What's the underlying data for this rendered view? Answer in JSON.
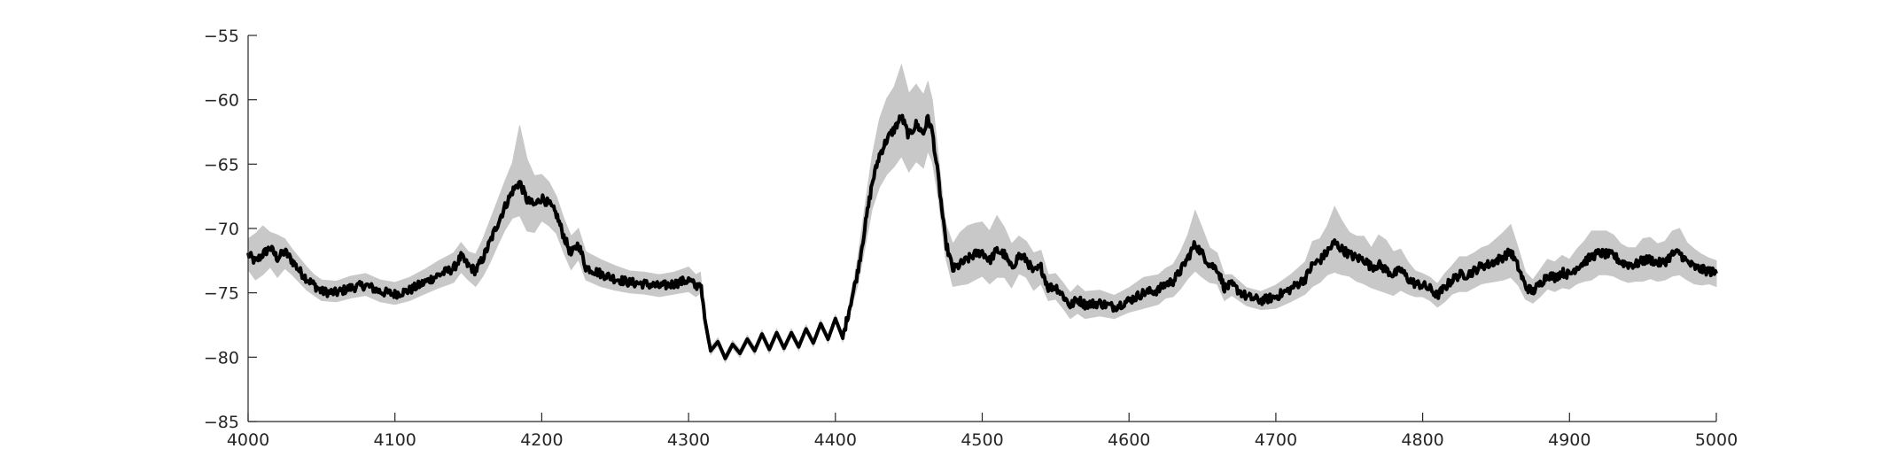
{
  "chart_data": {
    "type": "line",
    "title": "",
    "xlabel": "",
    "ylabel": "",
    "xlim": [
      4000,
      5000
    ],
    "ylim": [
      -85,
      -55
    ],
    "xticks": [
      4000,
      4100,
      4200,
      4300,
      4400,
      4500,
      4600,
      4700,
      4800,
      4900,
      5000
    ],
    "yticks": [
      -55,
      -60,
      -65,
      -70,
      -75,
      -80,
      -85
    ],
    "xtick_labels": [
      "4000",
      "4100",
      "4200",
      "4300",
      "4400",
      "4500",
      "4600",
      "4700",
      "4800",
      "4900",
      "5000"
    ],
    "ytick_labels": [
      "−55",
      "−60",
      "−65",
      "−70",
      "−75",
      "−80",
      "−85"
    ],
    "grid": false,
    "legend": "none",
    "colors": {
      "mean_line": "#000000",
      "band": "#c8c8c8",
      "axis": "#262626"
    },
    "series": [
      {
        "role": "mean",
        "x": [
          4000,
          4005,
          4010,
          4015,
          4020,
          4025,
          4030,
          4035,
          4040,
          4045,
          4050,
          4060,
          4070,
          4080,
          4090,
          4100,
          4110,
          4120,
          4130,
          4140,
          4145,
          4150,
          4155,
          4160,
          4165,
          4170,
          4175,
          4180,
          4185,
          4190,
          4195,
          4200,
          4205,
          4210,
          4215,
          4220,
          4225,
          4230,
          4240,
          4250,
          4260,
          4270,
          4280,
          4290,
          4300,
          4305,
          4308,
          4311,
          4315,
          4320,
          4325,
          4330,
          4335,
          4340,
          4345,
          4350,
          4355,
          4360,
          4365,
          4370,
          4375,
          4380,
          4385,
          4390,
          4395,
          4400,
          4405,
          4410,
          4415,
          4420,
          4425,
          4430,
          4435,
          4440,
          4445,
          4450,
          4455,
          4460,
          4463,
          4466,
          4470,
          4475,
          4480,
          4485,
          4490,
          4495,
          4500,
          4505,
          4510,
          4515,
          4520,
          4525,
          4530,
          4535,
          4540,
          4545,
          4550,
          4555,
          4560,
          4565,
          4570,
          4580,
          4590,
          4600,
          4610,
          4620,
          4625,
          4630,
          4635,
          4640,
          4645,
          4650,
          4655,
          4660,
          4665,
          4670,
          4680,
          4690,
          4700,
          4710,
          4720,
          4725,
          4730,
          4735,
          4740,
          4745,
          4750,
          4755,
          4760,
          4765,
          4770,
          4775,
          4780,
          4785,
          4790,
          4795,
          4800,
          4805,
          4810,
          4815,
          4820,
          4825,
          4830,
          4835,
          4840,
          4845,
          4850,
          4855,
          4860,
          4865,
          4870,
          4875,
          4880,
          4885,
          4890,
          4895,
          4900,
          4905,
          4910,
          4915,
          4920,
          4925,
          4930,
          4935,
          4940,
          4945,
          4950,
          4955,
          4960,
          4965,
          4970,
          4975,
          4980,
          4985,
          4990,
          4995,
          5000
        ],
        "y": [
          -72.0,
          -72.6,
          -72.0,
          -71.5,
          -72.3,
          -71.8,
          -72.5,
          -73.3,
          -73.9,
          -74.4,
          -74.9,
          -75.0,
          -74.6,
          -74.4,
          -74.9,
          -75.1,
          -74.8,
          -74.2,
          -73.6,
          -73.1,
          -72.2,
          -72.9,
          -73.3,
          -72.3,
          -71.0,
          -69.6,
          -68.3,
          -67.1,
          -66.4,
          -67.8,
          -68.2,
          -67.6,
          -68.1,
          -68.9,
          -70.6,
          -72.0,
          -71.2,
          -73.0,
          -73.5,
          -73.9,
          -74.2,
          -74.3,
          -74.5,
          -74.3,
          -74.0,
          -74.5,
          -74.2,
          -77.0,
          -79.5,
          -78.8,
          -80.1,
          -79.0,
          -79.7,
          -78.6,
          -79.5,
          -78.2,
          -79.4,
          -78.1,
          -79.3,
          -78.1,
          -79.2,
          -77.8,
          -78.9,
          -77.4,
          -78.6,
          -77.0,
          -78.5,
          -76.0,
          -73.5,
          -70.0,
          -66.5,
          -64.3,
          -63.1,
          -62.3,
          -61.3,
          -62.8,
          -61.9,
          -62.6,
          -61.4,
          -62.5,
          -66.0,
          -71.0,
          -73.2,
          -72.8,
          -72.4,
          -72.0,
          -71.8,
          -72.5,
          -71.7,
          -72.0,
          -73.1,
          -72.1,
          -72.4,
          -73.4,
          -73.0,
          -74.6,
          -74.5,
          -75.2,
          -76.0,
          -75.5,
          -75.9,
          -75.8,
          -76.1,
          -75.6,
          -75.0,
          -74.8,
          -74.3,
          -74.1,
          -73.3,
          -72.3,
          -71.2,
          -72.0,
          -72.8,
          -73.1,
          -74.6,
          -74.4,
          -75.3,
          -75.6,
          -75.3,
          -74.7,
          -73.9,
          -72.8,
          -72.5,
          -71.8,
          -71.1,
          -71.6,
          -72.0,
          -72.3,
          -72.4,
          -73.0,
          -72.8,
          -73.2,
          -73.6,
          -73.2,
          -73.9,
          -74.3,
          -74.4,
          -74.7,
          -75.2,
          -74.6,
          -74.0,
          -73.6,
          -73.6,
          -73.3,
          -72.9,
          -72.8,
          -72.5,
          -72.2,
          -71.8,
          -73.0,
          -74.5,
          -74.9,
          -74.3,
          -73.6,
          -73.8,
          -73.4,
          -73.6,
          -73.0,
          -72.6,
          -72.2,
          -71.9,
          -72.0,
          -72.1,
          -72.6,
          -72.8,
          -72.8,
          -72.5,
          -72.4,
          -72.7,
          -72.6,
          -72.0,
          -71.9,
          -72.6,
          -73.0,
          -73.2,
          -73.3,
          -73.5
        ]
      },
      {
        "role": "band-upper",
        "x": [
          4000,
          4005,
          4010,
          4015,
          4020,
          4025,
          4030,
          4035,
          4040,
          4045,
          4050,
          4060,
          4070,
          4080,
          4090,
          4100,
          4110,
          4120,
          4130,
          4140,
          4145,
          4150,
          4155,
          4160,
          4165,
          4170,
          4175,
          4180,
          4185,
          4190,
          4195,
          4200,
          4205,
          4210,
          4215,
          4220,
          4225,
          4230,
          4240,
          4250,
          4260,
          4270,
          4280,
          4290,
          4300,
          4305,
          4308,
          4311,
          4315,
          4320,
          4325,
          4330,
          4335,
          4340,
          4345,
          4350,
          4355,
          4360,
          4365,
          4370,
          4375,
          4380,
          4385,
          4390,
          4395,
          4400,
          4405,
          4410,
          4415,
          4420,
          4425,
          4430,
          4435,
          4440,
          4445,
          4450,
          4455,
          4460,
          4463,
          4466,
          4470,
          4475,
          4480,
          4485,
          4490,
          4495,
          4500,
          4505,
          4510,
          4515,
          4520,
          4525,
          4530,
          4535,
          4540,
          4545,
          4550,
          4555,
          4560,
          4565,
          4570,
          4580,
          4590,
          4600,
          4610,
          4620,
          4625,
          4630,
          4635,
          4640,
          4645,
          4650,
          4655,
          4660,
          4665,
          4670,
          4680,
          4690,
          4700,
          4710,
          4720,
          4725,
          4730,
          4735,
          4740,
          4745,
          4750,
          4755,
          4760,
          4765,
          4770,
          4775,
          4780,
          4785,
          4790,
          4795,
          4800,
          4805,
          4810,
          4815,
          4820,
          4825,
          4830,
          4835,
          4840,
          4845,
          4850,
          4855,
          4860,
          4865,
          4870,
          4875,
          4880,
          4885,
          4890,
          4895,
          4900,
          4905,
          4910,
          4915,
          4920,
          4925,
          4930,
          4935,
          4940,
          4945,
          4950,
          4955,
          4960,
          4965,
          4970,
          4975,
          4980,
          4985,
          4990,
          4995,
          5000
        ],
        "y": [
          -70.8,
          -70.4,
          -69.8,
          -70.3,
          -70.5,
          -70.8,
          -71.6,
          -72.3,
          -73.0,
          -73.6,
          -74.0,
          -74.1,
          -73.7,
          -73.5,
          -74.0,
          -74.2,
          -73.8,
          -73.2,
          -72.5,
          -71.9,
          -71.1,
          -71.8,
          -72.0,
          -70.8,
          -69.3,
          -67.8,
          -66.3,
          -64.9,
          -62.0,
          -64.6,
          -65.9,
          -65.8,
          -66.4,
          -67.5,
          -69.2,
          -70.6,
          -70.0,
          -71.8,
          -72.4,
          -72.9,
          -73.3,
          -73.4,
          -73.6,
          -73.4,
          -73.0,
          -73.6,
          -73.4,
          -76.6,
          -79.2,
          -78.5,
          -79.8,
          -78.7,
          -79.4,
          -78.3,
          -79.2,
          -77.9,
          -79.1,
          -77.8,
          -79.0,
          -77.8,
          -78.9,
          -77.5,
          -78.6,
          -77.1,
          -78.3,
          -76.7,
          -78.2,
          -75.5,
          -72.5,
          -68.4,
          -64.4,
          -61.5,
          -59.9,
          -59.0,
          -57.3,
          -59.5,
          -58.8,
          -59.6,
          -58.6,
          -60.0,
          -64.2,
          -69.6,
          -71.2,
          -70.3,
          -69.8,
          -69.6,
          -69.5,
          -70.2,
          -69.0,
          -69.9,
          -71.2,
          -70.6,
          -71.0,
          -71.9,
          -71.7,
          -73.6,
          -73.5,
          -74.2,
          -75.0,
          -74.4,
          -74.9,
          -74.8,
          -75.2,
          -74.6,
          -73.8,
          -73.6,
          -73.1,
          -72.8,
          -71.8,
          -70.5,
          -68.6,
          -70.0,
          -71.5,
          -71.9,
          -73.6,
          -73.6,
          -74.6,
          -74.9,
          -74.4,
          -73.6,
          -72.6,
          -71.0,
          -70.8,
          -69.8,
          -68.3,
          -69.4,
          -70.3,
          -70.6,
          -70.6,
          -71.5,
          -70.5,
          -70.9,
          -71.8,
          -71.6,
          -72.6,
          -73.3,
          -73.5,
          -73.8,
          -74.3,
          -73.5,
          -72.9,
          -72.2,
          -72.2,
          -71.9,
          -71.5,
          -71.3,
          -70.8,
          -70.3,
          -69.7,
          -71.5,
          -73.4,
          -74.0,
          -73.2,
          -72.4,
          -72.6,
          -72.1,
          -72.4,
          -71.6,
          -71.0,
          -70.2,
          -70.2,
          -70.2,
          -70.5,
          -71.2,
          -71.5,
          -71.5,
          -70.8,
          -70.7,
          -71.2,
          -71.0,
          -70.2,
          -70.0,
          -71.1,
          -71.6,
          -72.0,
          -72.3,
          -72.5
        ]
      },
      {
        "role": "band-lower",
        "x": [
          4000,
          4005,
          4010,
          4015,
          4020,
          4025,
          4030,
          4035,
          4040,
          4045,
          4050,
          4060,
          4070,
          4080,
          4090,
          4100,
          4110,
          4120,
          4130,
          4140,
          4145,
          4150,
          4155,
          4160,
          4165,
          4170,
          4175,
          4180,
          4185,
          4190,
          4195,
          4200,
          4205,
          4210,
          4215,
          4220,
          4225,
          4230,
          4240,
          4250,
          4260,
          4270,
          4280,
          4290,
          4300,
          4305,
          4308,
          4311,
          4315,
          4320,
          4325,
          4330,
          4335,
          4340,
          4345,
          4350,
          4355,
          4360,
          4365,
          4370,
          4375,
          4380,
          4385,
          4390,
          4395,
          4400,
          4405,
          4410,
          4415,
          4420,
          4425,
          4430,
          4435,
          4440,
          4445,
          4450,
          4455,
          4460,
          4463,
          4466,
          4470,
          4475,
          4480,
          4485,
          4490,
          4495,
          4500,
          4505,
          4510,
          4515,
          4520,
          4525,
          4530,
          4535,
          4540,
          4545,
          4550,
          4555,
          4560,
          4565,
          4570,
          4580,
          4590,
          4600,
          4610,
          4620,
          4625,
          4630,
          4635,
          4640,
          4645,
          4650,
          4655,
          4660,
          4665,
          4670,
          4680,
          4690,
          4700,
          4710,
          4720,
          4725,
          4730,
          4735,
          4740,
          4745,
          4750,
          4755,
          4760,
          4765,
          4770,
          4775,
          4780,
          4785,
          4790,
          4795,
          4800,
          4805,
          4810,
          4815,
          4820,
          4825,
          4830,
          4835,
          4840,
          4845,
          4850,
          4855,
          4860,
          4865,
          4870,
          4875,
          4880,
          4885,
          4890,
          4895,
          4900,
          4905,
          4910,
          4915,
          4920,
          4925,
          4930,
          4935,
          4940,
          4945,
          4950,
          4955,
          4960,
          4965,
          4970,
          4975,
          4980,
          4985,
          4990,
          4995,
          5000
        ],
        "y": [
          -73.2,
          -74.0,
          -73.6,
          -73.0,
          -73.8,
          -73.1,
          -73.6,
          -74.2,
          -74.8,
          -75.2,
          -75.6,
          -75.7,
          -75.4,
          -75.2,
          -75.7,
          -75.9,
          -75.6,
          -75.1,
          -74.6,
          -74.2,
          -73.4,
          -74.0,
          -74.5,
          -73.7,
          -72.6,
          -71.3,
          -70.1,
          -69.2,
          -69.0,
          -70.2,
          -70.3,
          -69.4,
          -69.8,
          -70.4,
          -71.9,
          -73.2,
          -72.4,
          -74.0,
          -74.5,
          -74.8,
          -75.0,
          -75.1,
          -75.3,
          -75.1,
          -74.9,
          -75.3,
          -75.0,
          -77.4,
          -79.8,
          -79.1,
          -80.4,
          -79.3,
          -80.0,
          -78.9,
          -79.8,
          -78.5,
          -79.7,
          -78.4,
          -79.6,
          -78.4,
          -79.5,
          -78.1,
          -79.2,
          -77.7,
          -78.9,
          -77.3,
          -78.8,
          -76.5,
          -74.5,
          -71.6,
          -68.5,
          -66.8,
          -65.8,
          -65.2,
          -64.4,
          -65.6,
          -64.8,
          -65.3,
          -64.0,
          -64.8,
          -67.6,
          -72.2,
          -74.5,
          -74.4,
          -74.3,
          -74.0,
          -73.7,
          -74.3,
          -73.8,
          -73.8,
          -74.6,
          -73.5,
          -73.8,
          -74.8,
          -74.3,
          -75.6,
          -75.5,
          -76.2,
          -77.0,
          -76.6,
          -77.0,
          -76.8,
          -77.0,
          -76.5,
          -76.2,
          -75.9,
          -75.4,
          -75.3,
          -74.7,
          -73.9,
          -73.3,
          -73.8,
          -74.2,
          -74.3,
          -75.6,
          -75.2,
          -76.0,
          -76.3,
          -76.2,
          -75.7,
          -75.1,
          -74.5,
          -74.2,
          -73.6,
          -73.4,
          -73.6,
          -73.7,
          -74.1,
          -74.3,
          -74.6,
          -74.8,
          -75.0,
          -75.2,
          -74.8,
          -75.1,
          -75.3,
          -75.3,
          -75.6,
          -76.1,
          -75.7,
          -75.1,
          -74.9,
          -74.9,
          -74.6,
          -74.3,
          -74.2,
          -74.1,
          -74.0,
          -73.8,
          -74.4,
          -75.5,
          -75.8,
          -75.3,
          -74.7,
          -74.9,
          -74.6,
          -74.7,
          -74.3,
          -74.1,
          -74.0,
          -73.6,
          -73.6,
          -73.7,
          -74.0,
          -74.2,
          -74.1,
          -74.1,
          -73.9,
          -74.1,
          -74.0,
          -73.7,
          -73.6,
          -74.0,
          -74.3,
          -74.4,
          -74.3,
          -74.5
        ]
      }
    ]
  }
}
